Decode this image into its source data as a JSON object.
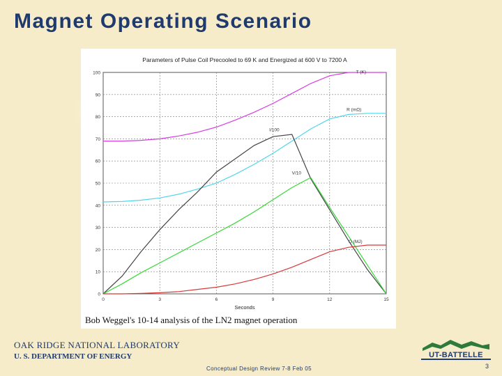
{
  "slide": {
    "title": "Magnet Operating Scenario",
    "lab_name": "OAK RIDGE NATIONAL LABORATORY",
    "department": "U. S. DEPARTMENT OF ENERGY",
    "footer_note": "Conceptual Design Review 7-8 Feb 05",
    "logo_text": "UT-BATTELLE",
    "page_number": "3"
  },
  "colors": {
    "title": "#1f3a6e",
    "background": "#f6ecc9"
  },
  "chart_data": {
    "type": "line",
    "title": "Parameters of Pulse Coil Precooled to 69 K and Energized at 600 V to 7200 A",
    "caption": "Bob Weggel's 10-14 analysis of the LN2 magnet operation",
    "xlabel": "Seconds",
    "ylabel": "",
    "xlim": [
      0,
      15
    ],
    "ylim": [
      0,
      100
    ],
    "x_ticks": [
      "0",
      "3",
      "6",
      "9",
      "12",
      "15"
    ],
    "y_ticks": [
      "0",
      "10",
      "20",
      "30",
      "40",
      "50",
      "60",
      "70",
      "80",
      "90",
      "100"
    ],
    "grid": true,
    "series": [
      {
        "name": "T (K)",
        "color": "#d63ee0",
        "x": [
          0,
          1,
          2,
          3,
          4,
          5,
          6,
          7,
          8,
          9,
          10,
          11,
          12,
          13,
          14,
          15
        ],
        "y": [
          69,
          69,
          69.3,
          70,
          71.3,
          73,
          75.3,
          78.5,
          82,
          86,
          90.5,
          95,
          98.5,
          100,
          100,
          100
        ]
      },
      {
        "name": "R (mΩ)",
        "color": "#4fd6ea",
        "x": [
          0,
          1,
          2,
          3,
          4,
          5,
          6,
          7,
          8,
          9,
          10,
          11,
          12,
          13,
          14,
          15
        ],
        "y": [
          41.5,
          41.7,
          42.3,
          43.3,
          45,
          47.3,
          50,
          54,
          58.5,
          63.5,
          69,
          74.5,
          79,
          81,
          81.5,
          81.5
        ]
      },
      {
        "name": "I/100",
        "color": "#444444",
        "x": [
          0,
          1,
          2,
          3,
          4,
          5,
          6,
          7,
          8,
          9,
          10,
          11,
          12,
          13,
          14,
          15
        ],
        "y": [
          0,
          8,
          19,
          29,
          38,
          46,
          55,
          61,
          67,
          71,
          72,
          52,
          38,
          24,
          11,
          0
        ]
      },
      {
        "name": "V/10",
        "color": "#38d838",
        "x": [
          0,
          1,
          2,
          3,
          4,
          5,
          6,
          7,
          8,
          9,
          10,
          11,
          12,
          13,
          14,
          15
        ],
        "y": [
          0,
          4.5,
          9.5,
          14,
          18.5,
          23,
          27.5,
          32,
          37,
          42.5,
          48,
          52.5,
          39,
          26,
          13,
          0
        ]
      },
      {
        "name": "Q (MJ)",
        "color": "#d83838",
        "x": [
          0,
          1,
          2,
          3,
          4,
          5,
          6,
          7,
          8,
          9,
          10,
          11,
          12,
          13,
          14,
          15
        ],
        "y": [
          0,
          0,
          0.2,
          0.5,
          1,
          2,
          3,
          4.5,
          6.5,
          9,
          12,
          15.5,
          19,
          21,
          22,
          22
        ]
      }
    ]
  }
}
